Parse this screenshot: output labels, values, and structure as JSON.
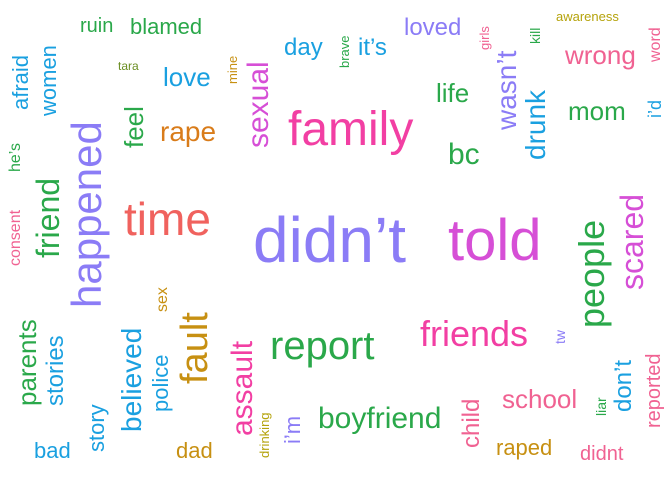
{
  "words": [
    {
      "text": "ruin",
      "color": "#2aa84a"
    },
    {
      "text": "blamed",
      "color": "#2aa84a"
    },
    {
      "text": "tara",
      "color": "#6b8e23"
    },
    {
      "text": "mine",
      "color": "#c79012"
    },
    {
      "text": "brave",
      "color": "#2aa84a"
    },
    {
      "text": "day",
      "color": "#1aa0e0"
    },
    {
      "text": "it’s",
      "color": "#1aa0e0"
    },
    {
      "text": "loved",
      "color": "#8b7cf6"
    },
    {
      "text": "girls",
      "color": "#f06292"
    },
    {
      "text": "kill",
      "color": "#2aa84a"
    },
    {
      "text": "awareness",
      "color": "#b5a30c"
    },
    {
      "text": "word",
      "color": "#f06292"
    },
    {
      "text": "afraid",
      "color": "#1aa0e0"
    },
    {
      "text": "women",
      "color": "#1aa0e0"
    },
    {
      "text": "love",
      "color": "#1aa0e0"
    },
    {
      "text": "wrong",
      "color": "#f06292"
    },
    {
      "text": "life",
      "color": "#2aa84a"
    },
    {
      "text": "wasn’t",
      "color": "#8b7cf6"
    },
    {
      "text": "i’d",
      "color": "#1aa0e0"
    },
    {
      "text": "mom",
      "color": "#2aa84a"
    },
    {
      "text": "drunk",
      "color": "#1aa0e0"
    },
    {
      "text": "happened",
      "color": "#8b7cf6"
    },
    {
      "text": "feel",
      "color": "#2aa84a"
    },
    {
      "text": "rape",
      "color": "#d97c1a"
    },
    {
      "text": "sexual",
      "color": "#d64fd6"
    },
    {
      "text": "family",
      "color": "#f23fa3"
    },
    {
      "text": "bc",
      "color": "#2aa84a"
    },
    {
      "text": "he’s",
      "color": "#2aa84a"
    },
    {
      "text": "friend",
      "color": "#2aa84a"
    },
    {
      "text": "consent",
      "color": "#f06292"
    },
    {
      "text": "time",
      "color": "#f0625e"
    },
    {
      "text": "didn’t",
      "color": "#8b7cf6"
    },
    {
      "text": "told",
      "color": "#d64fd6"
    },
    {
      "text": "people",
      "color": "#2aa84a"
    },
    {
      "text": "scared",
      "color": "#d64fd6"
    },
    {
      "text": "sex",
      "color": "#c79012"
    },
    {
      "text": "fault",
      "color": "#c79012"
    },
    {
      "text": "parents",
      "color": "#2aa84a"
    },
    {
      "text": "stories",
      "color": "#1aa0e0"
    },
    {
      "text": "believed",
      "color": "#1aa0e0"
    },
    {
      "text": "police",
      "color": "#1aa0e0"
    },
    {
      "text": "assault",
      "color": "#f23fa3"
    },
    {
      "text": "report",
      "color": "#2aa84a"
    },
    {
      "text": "friends",
      "color": "#f23fa3"
    },
    {
      "text": "tw",
      "color": "#8b7cf6"
    },
    {
      "text": "don’t",
      "color": "#1aa0e0"
    },
    {
      "text": "reported",
      "color": "#f06292"
    },
    {
      "text": "story",
      "color": "#1aa0e0"
    },
    {
      "text": "drinking",
      "color": "#b5a30c"
    },
    {
      "text": "i’m",
      "color": "#8b7cf6"
    },
    {
      "text": "boyfriend",
      "color": "#2aa84a"
    },
    {
      "text": "child",
      "color": "#f06292"
    },
    {
      "text": "school",
      "color": "#f06292"
    },
    {
      "text": "liar",
      "color": "#2aa84a"
    },
    {
      "text": "bad",
      "color": "#1aa0e0"
    },
    {
      "text": "dad",
      "color": "#c79012"
    },
    {
      "text": "raped",
      "color": "#c79012"
    },
    {
      "text": "didnt",
      "color": "#f06292"
    }
  ]
}
